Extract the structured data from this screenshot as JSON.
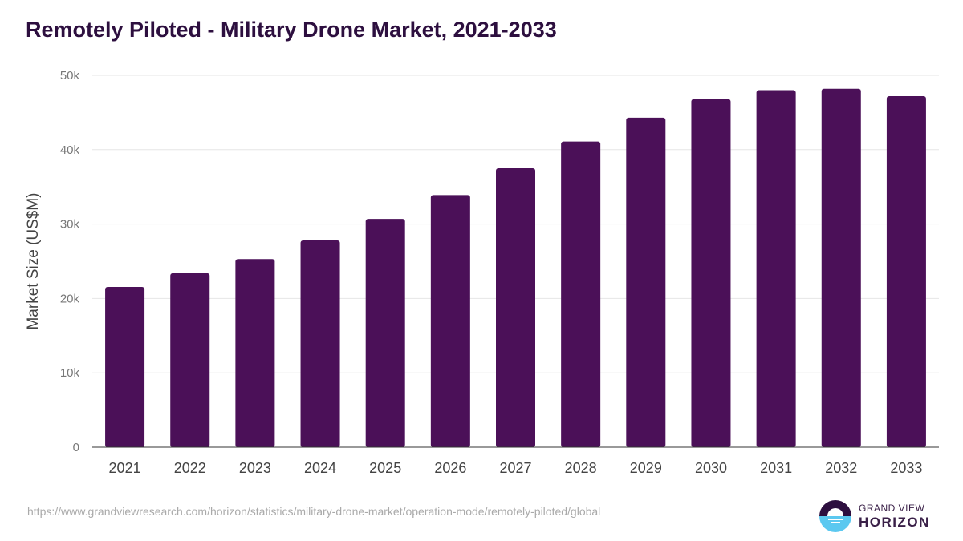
{
  "title": "Remotely Piloted - Military Drone Market, 2021-2033",
  "source_url": "https://www.grandviewresearch.com/horizon/statistics/military-drone-market/operation-mode/remotely-piloted/global",
  "logo": {
    "line1": "GRAND VIEW",
    "line2": "HORIZON"
  },
  "colors": {
    "bar": "#4b1058",
    "grid": "#e6e6e6",
    "axis": "#333333",
    "logo_dark": "#2d0f3f",
    "logo_light": "#5bc8f0"
  },
  "chart_data": {
    "type": "bar",
    "title": "Remotely Piloted - Military Drone Market, 2021-2033",
    "xlabel": "",
    "ylabel": "Market Size (US$M)",
    "categories": [
      "2021",
      "2022",
      "2023",
      "2024",
      "2025",
      "2026",
      "2027",
      "2028",
      "2029",
      "2030",
      "2031",
      "2032",
      "2033"
    ],
    "values": [
      21550,
      23400,
      25300,
      27800,
      30700,
      33900,
      37500,
      41100,
      44300,
      46800,
      48000,
      48200,
      47200
    ],
    "ylim": [
      0,
      50000
    ],
    "yticks": [
      0,
      10000,
      20000,
      30000,
      40000,
      50000
    ],
    "ytick_labels": [
      "0",
      "10k",
      "20k",
      "30k",
      "40k",
      "50k"
    ],
    "grid": true,
    "legend": "none"
  }
}
